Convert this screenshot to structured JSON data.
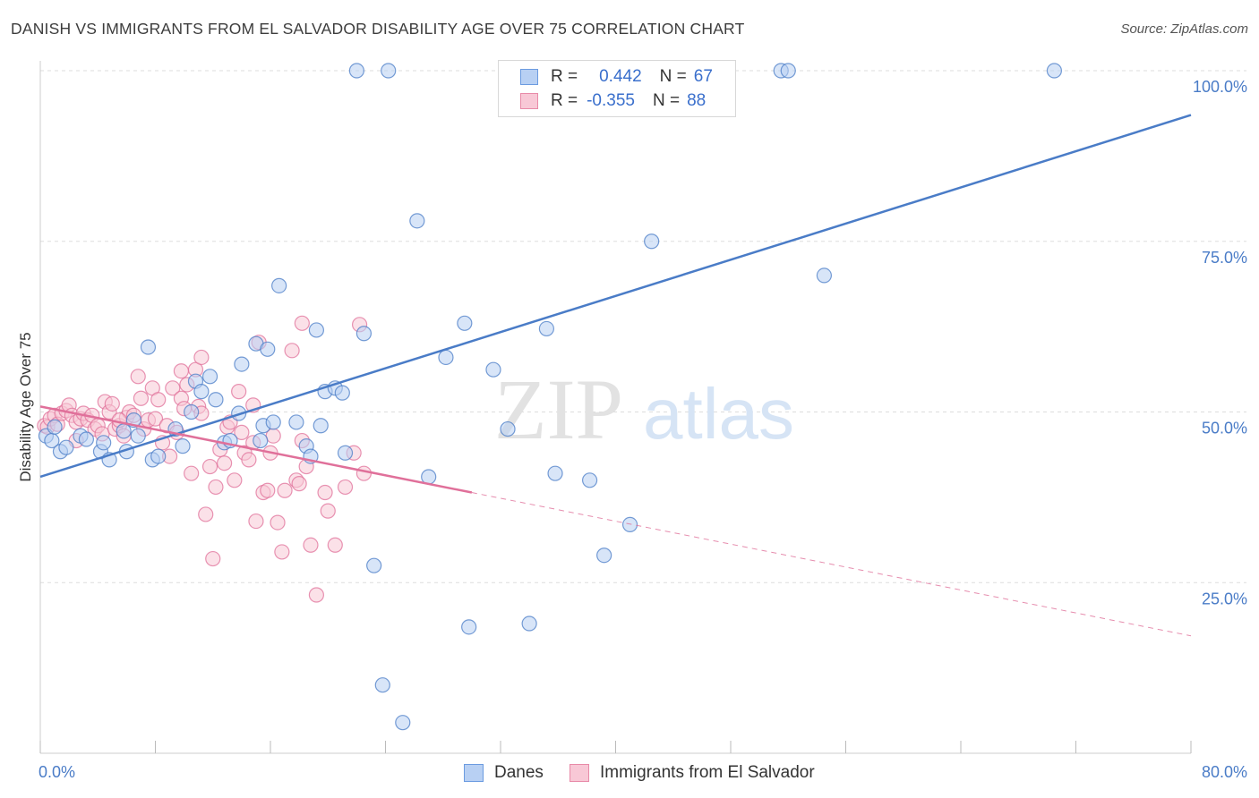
{
  "title": "DANISH VS IMMIGRANTS FROM EL SALVADOR DISABILITY AGE OVER 75 CORRELATION CHART",
  "source": "Source: ZipAtlas.com",
  "watermark": {
    "part1": "ZIP",
    "part2": "atlas"
  },
  "legend": {
    "rows": [
      {
        "r_label": "R =",
        "r_value": "0.442",
        "n_label": "N =",
        "n_value": "67",
        "color": "#6b9be0",
        "fill": "#b8d0f3"
      },
      {
        "r_label": "R =",
        "r_value": "-0.355",
        "n_label": "N =",
        "n_value": "88",
        "color": "#e88aa8",
        "fill": "#f8c8d6"
      }
    ]
  },
  "bottom_legend": [
    {
      "label": "Danes",
      "color": "#6b9be0",
      "fill": "#b8d0f3"
    },
    {
      "label": "Immigrants from El Salvador",
      "color": "#e88aa8",
      "fill": "#f8c8d6"
    }
  ],
  "chart_data": {
    "type": "scatter",
    "xlabel": "",
    "ylabel": "Disability Age Over 75",
    "xlim": [
      0,
      80
    ],
    "ylim": [
      0,
      100
    ],
    "x_tick_labels": [
      "0.0%",
      "80.0%"
    ],
    "y_tick_labels": [
      "100.0%",
      "75.0%",
      "50.0%",
      "25.0%"
    ],
    "y_tick_values": [
      100,
      75,
      50,
      25
    ],
    "grid": "horizontal dashed",
    "legend_placement": "top-center",
    "series": [
      {
        "name": "Danes",
        "color": "#4a7cc7",
        "marker_fill": "#b8d0f3",
        "trend": {
          "x": [
            0,
            80
          ],
          "y": [
            40.5,
            93.5
          ],
          "style": "solid"
        },
        "points": [
          [
            0.4,
            46.5
          ],
          [
            0.8,
            45.8
          ],
          [
            1.4,
            44.2
          ],
          [
            1.8,
            44.8
          ],
          [
            2.8,
            46.5
          ],
          [
            3.2,
            46.0
          ],
          [
            4.2,
            44.2
          ],
          [
            4.4,
            45.5
          ],
          [
            4.8,
            43.0
          ],
          [
            5.8,
            47.2
          ],
          [
            6.0,
            44.2
          ],
          [
            6.5,
            48.8
          ],
          [
            6.8,
            46.5
          ],
          [
            7.5,
            59.5
          ],
          [
            7.8,
            43.0
          ],
          [
            8.2,
            43.5
          ],
          [
            9.4,
            47.5
          ],
          [
            9.9,
            45.0
          ],
          [
            10.5,
            50.0
          ],
          [
            10.8,
            54.5
          ],
          [
            11.2,
            53.0
          ],
          [
            11.8,
            55.2
          ],
          [
            12.2,
            51.8
          ],
          [
            12.8,
            45.5
          ],
          [
            13.2,
            45.8
          ],
          [
            13.8,
            49.8
          ],
          [
            14.0,
            57.0
          ],
          [
            15.0,
            60.0
          ],
          [
            15.3,
            45.8
          ],
          [
            15.5,
            48.0
          ],
          [
            15.8,
            59.2
          ],
          [
            16.2,
            48.5
          ],
          [
            16.6,
            68.5
          ],
          [
            17.8,
            48.5
          ],
          [
            18.5,
            45.0
          ],
          [
            18.8,
            43.5
          ],
          [
            19.2,
            62.0
          ],
          [
            19.5,
            48.0
          ],
          [
            19.8,
            53.0
          ],
          [
            20.5,
            53.5
          ],
          [
            21.0,
            52.8
          ],
          [
            21.2,
            44.0
          ],
          [
            22.0,
            100.0
          ],
          [
            22.5,
            61.5
          ],
          [
            23.2,
            27.5
          ],
          [
            23.8,
            10.0
          ],
          [
            24.2,
            100.0
          ],
          [
            25.2,
            4.5
          ],
          [
            26.2,
            78.0
          ],
          [
            27.0,
            40.5
          ],
          [
            28.2,
            58.0
          ],
          [
            29.5,
            63.0
          ],
          [
            29.8,
            18.5
          ],
          [
            31.5,
            56.2
          ],
          [
            32.5,
            47.5
          ],
          [
            34.0,
            19.0
          ],
          [
            35.2,
            62.2
          ],
          [
            35.8,
            41.0
          ],
          [
            38.2,
            40.0
          ],
          [
            39.2,
            29.0
          ],
          [
            41.0,
            33.5
          ],
          [
            42.5,
            75.0
          ],
          [
            51.5,
            100.0
          ],
          [
            52.0,
            100.0
          ],
          [
            54.5,
            70.0
          ],
          [
            70.5,
            100.0
          ],
          [
            1.0,
            47.8
          ]
        ]
      },
      {
        "name": "Immigrants from El Salvador",
        "color": "#e0709a",
        "marker_fill": "#f8c8d6",
        "trend": {
          "x": [
            0,
            30
          ],
          "y": [
            50.8,
            38.2
          ],
          "style": "solid",
          "extension": {
            "x": [
              30,
              80
            ],
            "y": [
              38.2,
              17.2
            ],
            "style": "dashed"
          }
        },
        "points": [
          [
            0.3,
            48.0
          ],
          [
            0.5,
            47.8
          ],
          [
            0.7,
            49.0
          ],
          [
            1.0,
            49.5
          ],
          [
            1.2,
            48.2
          ],
          [
            1.5,
            49.8
          ],
          [
            1.8,
            50.2
          ],
          [
            2.0,
            51.0
          ],
          [
            2.2,
            49.5
          ],
          [
            2.5,
            48.5
          ],
          [
            2.8,
            49.0
          ],
          [
            3.0,
            49.8
          ],
          [
            3.3,
            48.8
          ],
          [
            3.6,
            49.5
          ],
          [
            3.8,
            47.5
          ],
          [
            4.0,
            48.0
          ],
          [
            4.3,
            46.8
          ],
          [
            4.5,
            51.5
          ],
          [
            4.8,
            50.0
          ],
          [
            5.0,
            51.2
          ],
          [
            5.2,
            47.5
          ],
          [
            5.5,
            48.0
          ],
          [
            5.8,
            46.5
          ],
          [
            6.0,
            49.2
          ],
          [
            6.2,
            50.0
          ],
          [
            6.5,
            49.5
          ],
          [
            6.8,
            55.2
          ],
          [
            7.0,
            52.0
          ],
          [
            7.2,
            47.5
          ],
          [
            7.5,
            48.8
          ],
          [
            7.8,
            53.5
          ],
          [
            8.0,
            49.0
          ],
          [
            8.2,
            51.8
          ],
          [
            8.5,
            45.5
          ],
          [
            8.8,
            48.0
          ],
          [
            9.0,
            43.5
          ],
          [
            9.2,
            53.5
          ],
          [
            9.5,
            47.0
          ],
          [
            9.8,
            52.0
          ],
          [
            10.0,
            50.5
          ],
          [
            10.2,
            54.0
          ],
          [
            10.5,
            41.0
          ],
          [
            10.8,
            56.2
          ],
          [
            11.0,
            50.8
          ],
          [
            11.2,
            49.8
          ],
          [
            11.5,
            35.0
          ],
          [
            11.8,
            42.0
          ],
          [
            12.0,
            28.5
          ],
          [
            12.2,
            39.0
          ],
          [
            12.5,
            44.5
          ],
          [
            12.8,
            42.5
          ],
          [
            13.0,
            47.8
          ],
          [
            13.2,
            48.5
          ],
          [
            13.5,
            40.0
          ],
          [
            13.8,
            53.0
          ],
          [
            14.0,
            47.0
          ],
          [
            14.2,
            44.0
          ],
          [
            14.5,
            43.0
          ],
          [
            14.8,
            51.0
          ],
          [
            15.0,
            34.0
          ],
          [
            15.2,
            60.2
          ],
          [
            15.5,
            38.2
          ],
          [
            15.8,
            38.5
          ],
          [
            16.0,
            44.0
          ],
          [
            16.2,
            46.5
          ],
          [
            16.5,
            33.8
          ],
          [
            16.8,
            29.5
          ],
          [
            17.0,
            38.5
          ],
          [
            17.5,
            59.0
          ],
          [
            17.8,
            40.0
          ],
          [
            18.0,
            39.5
          ],
          [
            18.2,
            63.0
          ],
          [
            18.5,
            42.0
          ],
          [
            18.8,
            30.5
          ],
          [
            19.2,
            23.2
          ],
          [
            19.8,
            38.2
          ],
          [
            20.0,
            35.5
          ],
          [
            20.5,
            30.5
          ],
          [
            21.2,
            39.0
          ],
          [
            21.8,
            44.0
          ],
          [
            22.2,
            62.8
          ],
          [
            22.5,
            41.0
          ],
          [
            11.2,
            58.0
          ],
          [
            9.8,
            56.0
          ],
          [
            14.8,
            45.5
          ],
          [
            18.2,
            45.8
          ],
          [
            2.5,
            45.8
          ],
          [
            5.5,
            48.8
          ]
        ]
      }
    ]
  }
}
